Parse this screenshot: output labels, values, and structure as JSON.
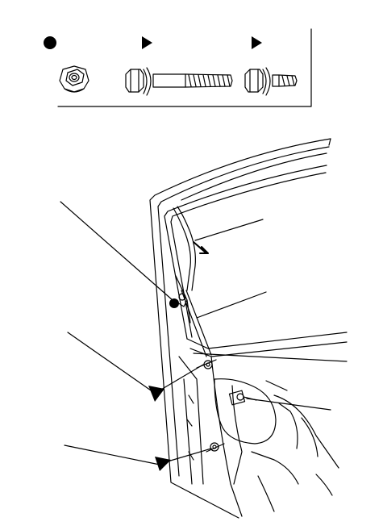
{
  "figure": {
    "legend": {
      "symbols": [
        {
          "name": "filled-circle-icon",
          "meaning_shown": ""
        },
        {
          "name": "triangle-icon"
        },
        {
          "name": "triangle-icon"
        }
      ],
      "parts": [
        "flange-nut-icon",
        "long-flange-bolt-icon",
        "short-flange-bolt-icon"
      ]
    },
    "callouts": [
      {
        "name": "callout-nut",
        "marker": "filled-circle-icon"
      },
      {
        "name": "callout-bolt-upper",
        "marker": "triangle-icon"
      },
      {
        "name": "callout-bolt-lower",
        "marker": "triangle-icon"
      },
      {
        "name": "callout-cable-clip"
      },
      {
        "name": "callout-window-channel"
      },
      {
        "name": "callout-regulator-connector"
      }
    ],
    "colors": {
      "line": "#000000",
      "background": "#ffffff"
    }
  }
}
